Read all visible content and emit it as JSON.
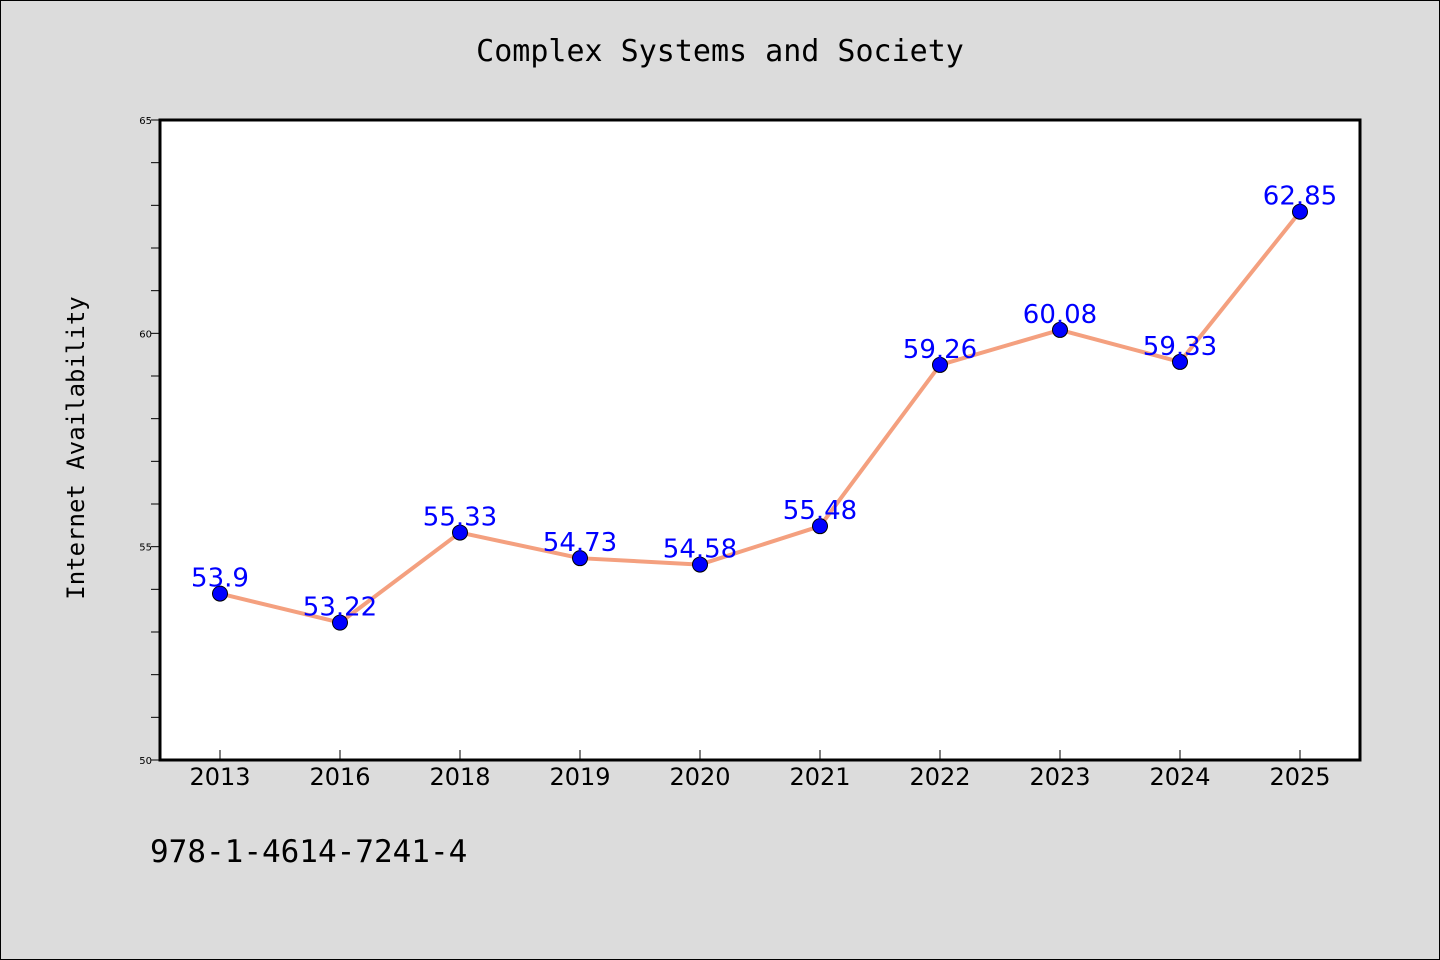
{
  "chart_data": {
    "type": "line",
    "title": "Complex Systems and Society",
    "xlabel": "",
    "ylabel": "Internet Availability",
    "categories": [
      "2013",
      "2016",
      "2018",
      "2019",
      "2020",
      "2021",
      "2022",
      "2023",
      "2024",
      "2025"
    ],
    "series": [
      {
        "values": [
          53.9,
          53.22,
          55.33,
          54.73,
          54.58,
          55.48,
          59.26,
          60.08,
          59.33,
          62.85
        ],
        "data_labels": [
          "53.9",
          "53.22",
          "55.33",
          "54.73",
          "54.58",
          "55.48",
          "59.26",
          "60.08",
          "59.33",
          "62.85"
        ],
        "line_color": "#f4a07f",
        "marker_color": "#0000ff"
      }
    ],
    "ylim": [
      50,
      65
    ],
    "y_major_ticks": [
      "50",
      "55",
      "60",
      "65"
    ],
    "y_minor_tick_step": 1,
    "grid": false,
    "legend": "none",
    "label_color": "#0000ff"
  },
  "footer": {
    "code": "978-1-4614-7241-4"
  },
  "colors": {
    "background": "#dcdcdc",
    "plot_background": "#ffffff"
  }
}
